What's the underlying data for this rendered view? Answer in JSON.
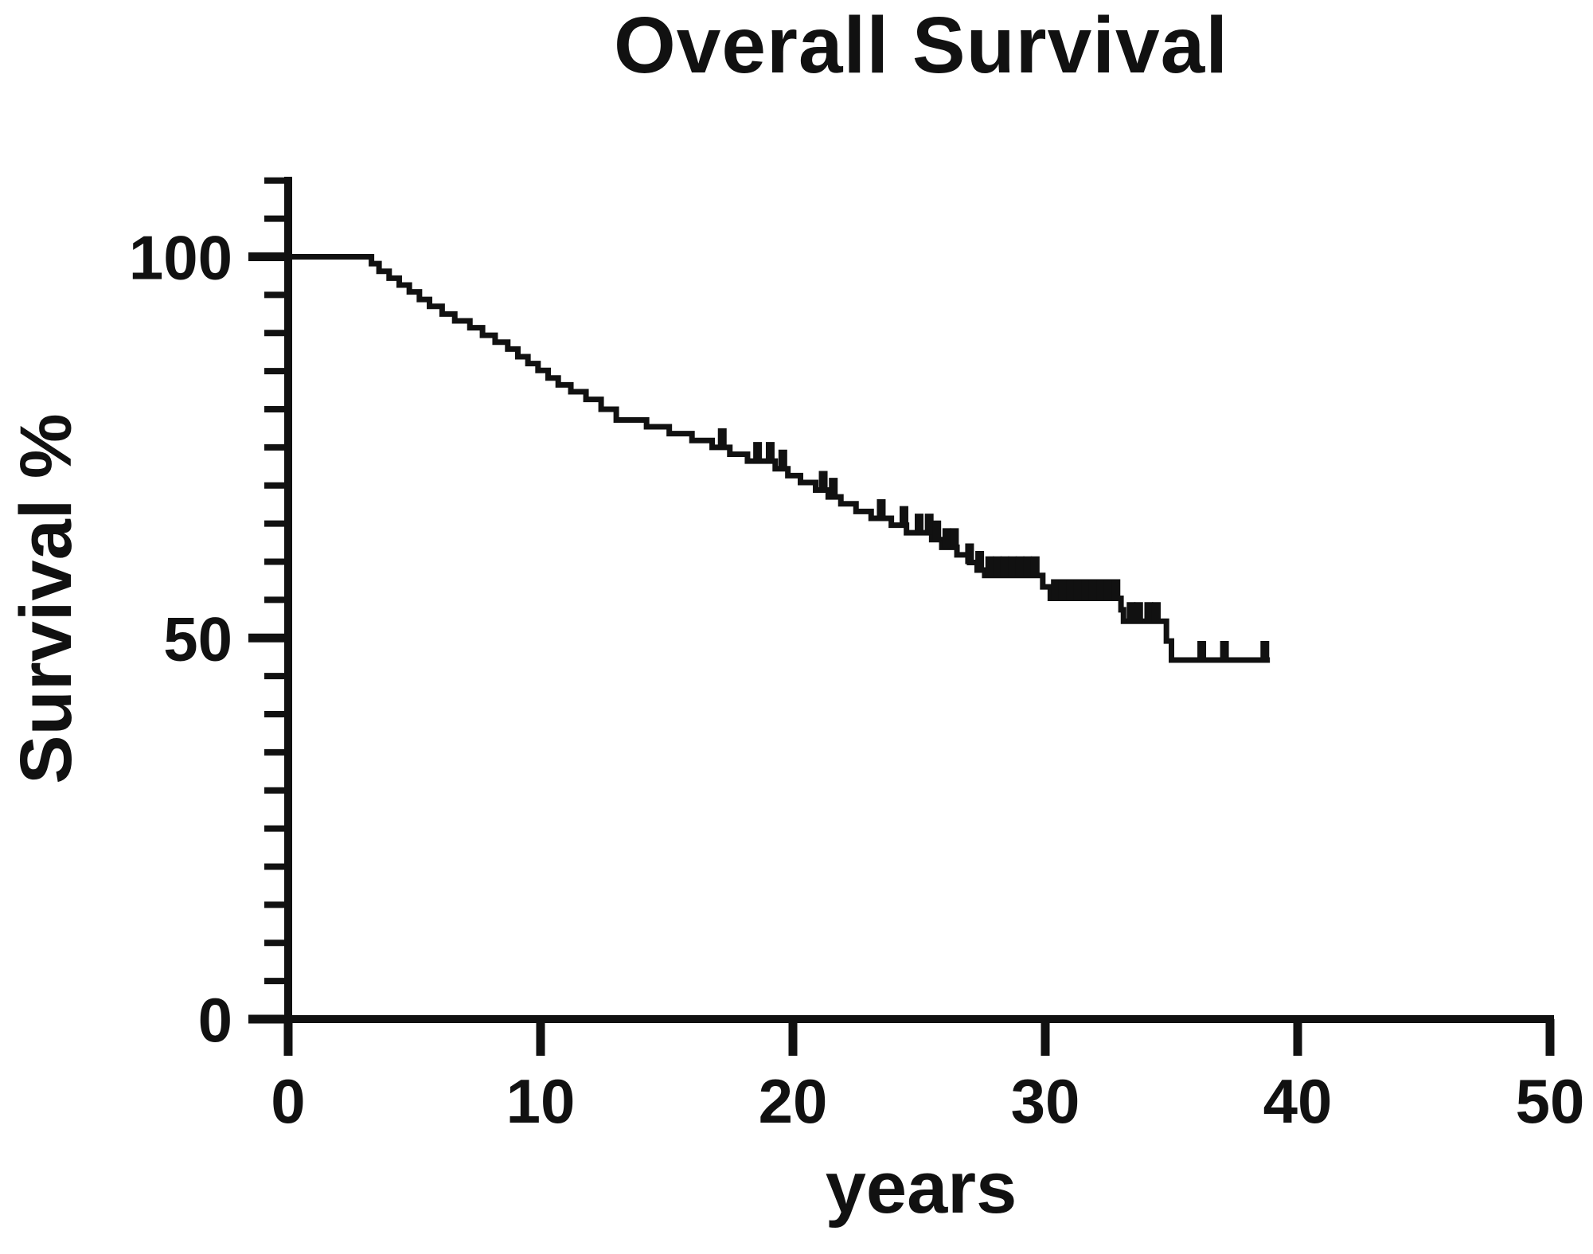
{
  "figure": {
    "title": "Overall Survival",
    "background_color": "#ffffff",
    "foreground_color": "#111111"
  },
  "chart_data": {
    "type": "line",
    "subtype": "kaplan-meier-step-curve",
    "title": "Overall Survival",
    "xlabel": "years",
    "ylabel": "Survival %",
    "xlim": [
      0,
      50
    ],
    "ylim": [
      0,
      110
    ],
    "x_ticks": [
      0,
      10,
      20,
      30,
      40,
      50
    ],
    "y_major_ticks": [
      0,
      50,
      100
    ],
    "y_minor_tick_interval": 5,
    "grid": false,
    "legend": "none",
    "line_color": "#111111",
    "series": [
      {
        "name": "Overall Survival",
        "note": "steps are [time_years, survival_percent_after_drop]; curve is flat between steps",
        "steps": [
          [
            0,
            100
          ],
          [
            3.3,
            99.1
          ],
          [
            3.6,
            98.1
          ],
          [
            4.0,
            97.2
          ],
          [
            4.4,
            96.3
          ],
          [
            4.8,
            95.4
          ],
          [
            5.2,
            94.4
          ],
          [
            5.6,
            93.5
          ],
          [
            6.1,
            92.5
          ],
          [
            6.6,
            91.6
          ],
          [
            7.2,
            90.7
          ],
          [
            7.7,
            89.7
          ],
          [
            8.2,
            88.8
          ],
          [
            8.7,
            87.9
          ],
          [
            9.1,
            86.9
          ],
          [
            9.5,
            86.0
          ],
          [
            9.9,
            85.1
          ],
          [
            10.3,
            84.1
          ],
          [
            10.7,
            83.2
          ],
          [
            11.2,
            82.3
          ],
          [
            11.8,
            81.3
          ],
          [
            12.4,
            80.0
          ],
          [
            13.0,
            78.6
          ],
          [
            14.2,
            77.7
          ],
          [
            15.1,
            76.8
          ],
          [
            16.0,
            75.9
          ],
          [
            16.8,
            75.0
          ],
          [
            17.5,
            74.1
          ],
          [
            18.2,
            73.2
          ],
          [
            19.3,
            72.2
          ],
          [
            19.8,
            71.3
          ],
          [
            20.3,
            70.4
          ],
          [
            20.9,
            69.4
          ],
          [
            21.4,
            68.5
          ],
          [
            21.9,
            67.6
          ],
          [
            22.5,
            66.6
          ],
          [
            23.1,
            65.7
          ],
          [
            23.9,
            64.8
          ],
          [
            24.5,
            63.8
          ],
          [
            25.5,
            62.9
          ],
          [
            25.9,
            61.9
          ],
          [
            26.5,
            60.9
          ],
          [
            27.0,
            59.9
          ],
          [
            27.3,
            58.9
          ],
          [
            27.6,
            58.2
          ],
          [
            29.9,
            56.7
          ],
          [
            30.2,
            55.2
          ],
          [
            33.0,
            53.7
          ],
          [
            33.1,
            52.2
          ],
          [
            34.8,
            49.6
          ],
          [
            35.0,
            47.1
          ]
        ],
        "end_time": 38.9,
        "end_value": 47.1,
        "censor_times": [
          17.2,
          18.6,
          19.1,
          19.6,
          21.2,
          21.6,
          23.5,
          24.4,
          25.0,
          25.4,
          25.7,
          26.1,
          26.4,
          27.0,
          27.4,
          27.8,
          28.1,
          28.4,
          28.7,
          29.0,
          29.3,
          29.6,
          30.4,
          30.7,
          31.0,
          31.3,
          31.6,
          31.9,
          32.2,
          32.5,
          32.8,
          33.4,
          33.7,
          34.1,
          34.4,
          36.2,
          37.1,
          38.7
        ]
      }
    ]
  }
}
